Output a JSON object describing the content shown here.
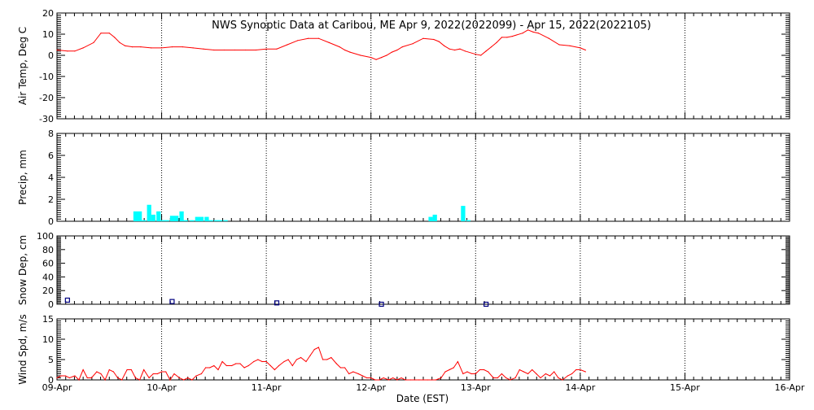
{
  "title": "NWS Synoptic Data at Caribou, ME   Apr  9, 2022(2022099) - Apr 15, 2022(2022105)",
  "xlabel": "Date (EST)",
  "x_tick_labels": [
    "09-Apr",
    "10-Apr",
    "11-Apr",
    "12-Apr",
    "13-Apr",
    "14-Apr",
    "15-Apr",
    "16-Apr"
  ],
  "colors": {
    "line": "#ff0000",
    "bar": "#00ffff",
    "snow_marker": "#000080",
    "axes": "#000000"
  },
  "chart_data": [
    {
      "id": "air_temp",
      "type": "line",
      "ylabel": "Air Temp, Deg C",
      "ylim": [
        -30,
        20
      ],
      "yticks": [
        -30,
        -20,
        -10,
        0,
        10,
        20
      ],
      "xlim": [
        0,
        7
      ],
      "grid": "vertical-dotted-daily",
      "x": [
        0.0,
        0.1,
        0.17,
        0.25,
        0.35,
        0.42,
        0.5,
        0.55,
        0.6,
        0.65,
        0.72,
        0.8,
        0.9,
        1.0,
        1.1,
        1.2,
        1.3,
        1.4,
        1.5,
        1.6,
        1.7,
        1.8,
        1.9,
        2.0,
        2.1,
        2.2,
        2.3,
        2.4,
        2.5,
        2.6,
        2.7,
        2.75,
        2.8,
        2.9,
        3.0,
        3.05,
        3.1,
        3.15,
        3.2,
        3.25,
        3.3,
        3.4,
        3.5,
        3.6,
        3.65,
        3.7,
        3.75,
        3.8,
        3.85,
        3.9,
        4.0,
        4.05,
        4.1,
        4.15,
        4.2,
        4.25,
        4.3,
        4.35,
        4.45,
        4.5,
        4.55,
        4.6,
        4.7,
        4.8,
        4.9,
        5.0,
        5.05
      ],
      "y": [
        2.5,
        2.0,
        2.0,
        3.5,
        6.0,
        10.5,
        10.5,
        8.5,
        6.0,
        4.5,
        4.0,
        4.0,
        3.5,
        3.5,
        4.0,
        4.0,
        3.5,
        3.0,
        2.5,
        2.5,
        2.5,
        2.5,
        2.5,
        3.0,
        3.0,
        5.0,
        7.0,
        8.0,
        8.0,
        6.0,
        4.0,
        2.5,
        1.5,
        0.0,
        -1.0,
        -2.0,
        -1.0,
        0.0,
        1.5,
        2.5,
        4.0,
        5.5,
        8.0,
        7.5,
        6.5,
        4.5,
        3.0,
        2.5,
        3.0,
        2.0,
        0.5,
        0.0,
        2.0,
        4.0,
        6.0,
        8.5,
        8.5,
        9.0,
        10.5,
        12.0,
        11.0,
        10.5,
        8.0,
        5.0,
        4.5,
        3.5,
        2.5
      ]
    },
    {
      "id": "precip",
      "type": "bar",
      "ylabel": "Precip, mm",
      "ylim": [
        0,
        8
      ],
      "yticks": [
        0,
        2,
        4,
        6,
        8
      ],
      "xlim": [
        0,
        7
      ],
      "grid": "vertical-dotted-daily",
      "bar_width": 0.041,
      "x": [
        0.73,
        0.77,
        0.81,
        0.86,
        0.9,
        0.95,
        0.99,
        1.03,
        1.08,
        1.12,
        1.17,
        1.21,
        1.27,
        1.32,
        1.36,
        1.41,
        1.45,
        1.5,
        1.54,
        1.59,
        1.63,
        1.68,
        1.72,
        1.77,
        1.82,
        1.86,
        1.91,
        1.95,
        2.0,
        2.05,
        2.09,
        2.14,
        2.18,
        2.23,
        2.27,
        2.32,
        2.36,
        2.41,
        2.45,
        2.5,
        2.55,
        2.59,
        2.64,
        2.68,
        2.73,
        2.77,
        2.82,
        2.86,
        2.91,
        2.95,
        3.0,
        3.05,
        3.09,
        3.14,
        3.18,
        3.23,
        3.27,
        3.32,
        3.36,
        3.41,
        3.45,
        3.5,
        3.55,
        3.59,
        3.64,
        3.68,
        3.73,
        3.77,
        3.82,
        3.86,
        3.91,
        3.95
      ],
      "values": [
        0.9,
        0.9,
        0.1,
        1.5,
        0.6,
        0.9,
        0.1,
        0.1,
        0.5,
        0.5,
        0.9,
        0.1,
        0.1,
        0.4,
        0.4,
        0.4,
        0.1,
        0.1,
        0.1,
        0.1,
        0,
        0,
        0,
        0,
        0,
        0,
        0,
        0,
        0,
        0,
        0,
        0,
        0,
        0,
        0,
        0,
        0,
        0,
        0,
        0,
        0,
        0,
        0,
        0,
        0,
        0,
        0,
        0,
        0,
        0,
        0,
        0,
        0,
        0,
        0,
        0,
        0,
        0,
        0,
        0,
        0,
        0,
        0.4,
        0.6,
        0,
        0,
        0,
        0,
        0,
        1.4,
        0.1,
        0
      ]
    },
    {
      "id": "snow_depth",
      "type": "scatter",
      "ylabel": "Snow Dep, cm",
      "ylim": [
        0,
        100
      ],
      "yticks": [
        0,
        20,
        40,
        60,
        80,
        100
      ],
      "xlim": [
        0,
        7
      ],
      "grid": "vertical-dotted-daily",
      "marker": "open-square",
      "x": [
        0.1,
        1.1,
        2.1,
        3.1,
        4.1
      ],
      "y": [
        6,
        4,
        2,
        0,
        0
      ]
    },
    {
      "id": "wind_speed",
      "type": "line",
      "ylabel": "Wind Spd, m/s",
      "ylim": [
        0,
        15
      ],
      "yticks": [
        0,
        5,
        10,
        15
      ],
      "xlim": [
        0,
        7
      ],
      "grid": "vertical-dotted-daily",
      "x": [
        0.0,
        0.04,
        0.08,
        0.12,
        0.17,
        0.21,
        0.25,
        0.29,
        0.33,
        0.38,
        0.42,
        0.46,
        0.5,
        0.54,
        0.58,
        0.62,
        0.67,
        0.71,
        0.75,
        0.79,
        0.83,
        0.88,
        0.92,
        0.96,
        1.0,
        1.04,
        1.08,
        1.12,
        1.17,
        1.21,
        1.25,
        1.29,
        1.33,
        1.38,
        1.42,
        1.46,
        1.5,
        1.54,
        1.58,
        1.62,
        1.67,
        1.71,
        1.75,
        1.79,
        1.83,
        1.88,
        1.92,
        1.96,
        2.0,
        2.04,
        2.08,
        2.12,
        2.17,
        2.21,
        2.25,
        2.29,
        2.33,
        2.38,
        2.42,
        2.46,
        2.5,
        2.54,
        2.58,
        2.62,
        2.67,
        2.71,
        2.75,
        2.79,
        2.83,
        2.88,
        2.92,
        2.96,
        3.0,
        3.04,
        3.08,
        3.12,
        3.17,
        3.21,
        3.25,
        3.29,
        3.33,
        3.38,
        3.42,
        3.46,
        3.5,
        3.54,
        3.58,
        3.62,
        3.67,
        3.71,
        3.75,
        3.79,
        3.83,
        3.88,
        3.92,
        3.96,
        4.0,
        4.04,
        4.08,
        4.12,
        4.17,
        4.21,
        4.25,
        4.29,
        4.33,
        4.38,
        4.42,
        4.46,
        4.5,
        4.54,
        4.58,
        4.62,
        4.67,
        4.71,
        4.75,
        4.79,
        4.83,
        4.88,
        4.92,
        4.96,
        5.0,
        5.05
      ],
      "y": [
        0.5,
        1.0,
        1.0,
        0.5,
        1.0,
        0.0,
        2.5,
        0.5,
        0.5,
        2.0,
        1.5,
        0.0,
        2.5,
        2.0,
        0.5,
        0.0,
        2.5,
        2.5,
        0.5,
        0.0,
        2.5,
        0.5,
        1.5,
        1.5,
        2.0,
        2.0,
        0.0,
        1.5,
        0.5,
        0.0,
        0.5,
        0.0,
        1.0,
        1.5,
        3.0,
        3.0,
        3.5,
        2.5,
        4.5,
        3.5,
        3.5,
        4.0,
        4.0,
        3.0,
        3.5,
        4.5,
        5.0,
        4.5,
        4.5,
        3.5,
        2.5,
        3.5,
        4.5,
        5.0,
        3.5,
        5.0,
        5.5,
        4.5,
        6.0,
        7.5,
        8.0,
        5.0,
        5.0,
        5.5,
        4.0,
        3.0,
        3.0,
        1.5,
        2.0,
        1.5,
        1.0,
        0.5,
        0.5,
        0.0,
        0.0,
        0.5,
        0.0,
        0.5,
        0.0,
        0.5,
        0.0,
        0.0,
        0.0,
        0.0,
        0.0,
        0.0,
        0.0,
        0.0,
        0.5,
        2.0,
        2.5,
        3.0,
        4.5,
        1.5,
        2.0,
        1.5,
        1.5,
        2.5,
        2.5,
        2.0,
        0.5,
        0.5,
        1.5,
        0.5,
        0.0,
        0.5,
        2.5,
        2.0,
        1.5,
        2.5,
        1.5,
        0.5,
        1.5,
        1.0,
        2.0,
        0.5,
        0.0,
        1.0,
        1.5,
        2.5,
        2.5,
        2.0
      ]
    }
  ]
}
